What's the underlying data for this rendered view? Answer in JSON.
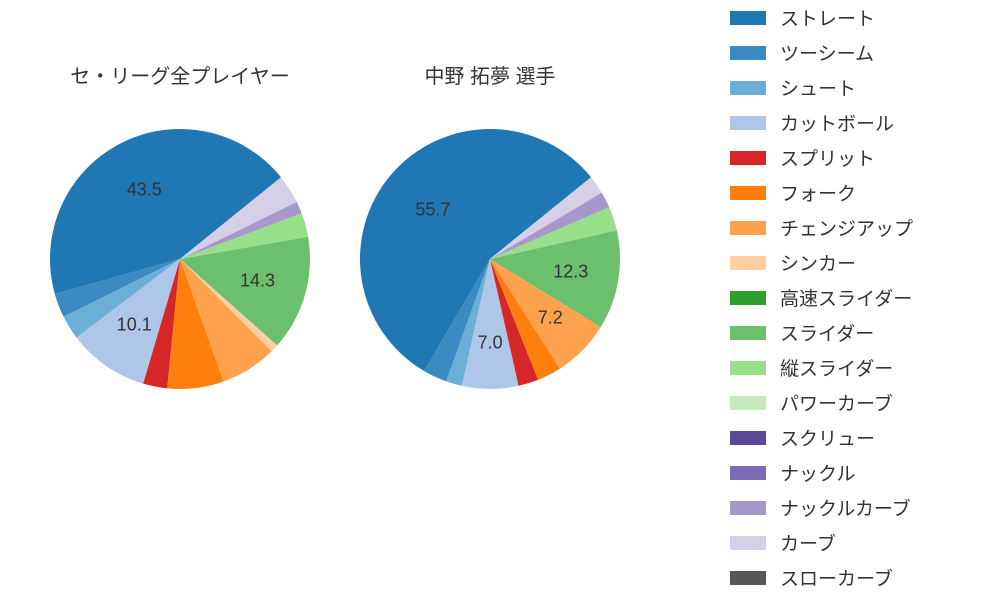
{
  "legend_items": [
    {
      "label": "ストレート",
      "color": "#1f77b4"
    },
    {
      "label": "ツーシーム",
      "color": "#3a8bc2"
    },
    {
      "label": "シュート",
      "color": "#6baed6"
    },
    {
      "label": "カットボール",
      "color": "#aec7e8"
    },
    {
      "label": "スプリット",
      "color": "#d62728"
    },
    {
      "label": "フォーク",
      "color": "#ff7f0e"
    },
    {
      "label": "チェンジアップ",
      "color": "#ffa24d"
    },
    {
      "label": "シンカー",
      "color": "#ffcfa3"
    },
    {
      "label": "高速スライダー",
      "color": "#2ca02c"
    },
    {
      "label": "スライダー",
      "color": "#6cbf6c"
    },
    {
      "label": "縦スライダー",
      "color": "#98df8a"
    },
    {
      "label": "パワーカーブ",
      "color": "#c7e9c0"
    },
    {
      "label": "スクリュー",
      "color": "#5b4897"
    },
    {
      "label": "ナックル",
      "color": "#7d6bb3"
    },
    {
      "label": "ナックルカーブ",
      "color": "#a699c9"
    },
    {
      "label": "カーブ",
      "color": "#d6d0e6"
    },
    {
      "label": "スローカーブ",
      "color": "#555555"
    }
  ],
  "charts": [
    {
      "title": "セ・リーグ全プレイヤー",
      "slices": [
        {
          "value": 43.5,
          "color": "#1f77b4",
          "show_label": true,
          "label_r": 0.6
        },
        {
          "value": 3.0,
          "color": "#3a8bc2",
          "show_label": false
        },
        {
          "value": 3.0,
          "color": "#6baed6",
          "show_label": false
        },
        {
          "value": 10.1,
          "color": "#aec7e8",
          "show_label": true,
          "label_r": 0.62
        },
        {
          "value": 3.0,
          "color": "#d62728",
          "show_label": false
        },
        {
          "value": 7.0,
          "color": "#ff7f0e",
          "show_label": false
        },
        {
          "value": 7.0,
          "color": "#ffa24d",
          "show_label": false
        },
        {
          "value": 1.0,
          "color": "#ffcfa3",
          "show_label": false
        },
        {
          "value": 14.3,
          "color": "#6cbf6c",
          "show_label": true,
          "label_r": 0.62
        },
        {
          "value": 3.0,
          "color": "#98df8a",
          "show_label": false
        },
        {
          "value": 1.5,
          "color": "#a699c9",
          "show_label": false
        },
        {
          "value": 3.6,
          "color": "#d6d0e6",
          "show_label": false
        }
      ]
    },
    {
      "title": "中野 拓夢  選手",
      "slices": [
        {
          "value": 55.7,
          "color": "#1f77b4",
          "show_label": true,
          "label_r": 0.58
        },
        {
          "value": 3.0,
          "color": "#3a8bc2",
          "show_label": false
        },
        {
          "value": 2.0,
          "color": "#6baed6",
          "show_label": false
        },
        {
          "value": 7.0,
          "color": "#aec7e8",
          "show_label": true,
          "label_r": 0.65
        },
        {
          "value": 2.5,
          "color": "#d62728",
          "show_label": false
        },
        {
          "value": 3.0,
          "color": "#ff7f0e",
          "show_label": false
        },
        {
          "value": 7.2,
          "color": "#ffa24d",
          "show_label": true,
          "label_r": 0.65
        },
        {
          "value": 12.3,
          "color": "#6cbf6c",
          "show_label": true,
          "label_r": 0.63
        },
        {
          "value": 3.0,
          "color": "#98df8a",
          "show_label": false
        },
        {
          "value": 2.0,
          "color": "#a699c9",
          "show_label": false
        },
        {
          "value": 2.3,
          "color": "#d6d0e6",
          "show_label": false
        }
      ]
    }
  ],
  "pie_start_angle_deg": 51,
  "pie_background": "#ffffff",
  "label_fontsize": 18,
  "title_fontsize": 20,
  "legend_fontsize": 19,
  "swatch_w": 36,
  "swatch_h": 14
}
